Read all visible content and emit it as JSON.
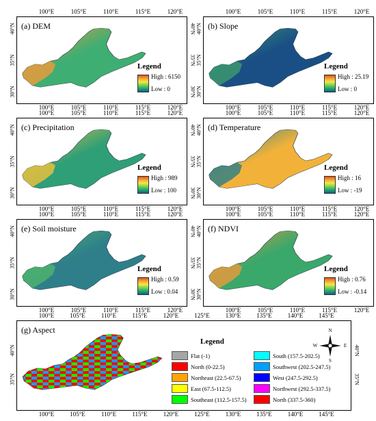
{
  "axis_ticks": {
    "lon_small": [
      "100°E",
      "105°E",
      "110°E",
      "115°E",
      "120°E"
    ],
    "lat_small": [
      "40°N",
      "35°N",
      "30°N"
    ],
    "lon_wide": [
      "100°E",
      "105°E",
      "110°E",
      "115°E",
      "120°E",
      "125°E",
      "130°E",
      "135°E",
      "140°E",
      "145°E"
    ],
    "lat_wide": [
      "40°N",
      "35°N"
    ]
  },
  "panels": [
    {
      "id": "a",
      "title": "(a) DEM",
      "legend_title": "Legend",
      "high": "High : 6150",
      "low": "Low : 0",
      "gradient": [
        "#d9531e",
        "#f6a532",
        "#f2e84b",
        "#7bd24f",
        "#1fa86f",
        "#135e8a"
      ],
      "map_fill": "#3fae72",
      "map_fill2": "#f39a3a"
    },
    {
      "id": "b",
      "title": "(b) Slope",
      "legend_title": "Legend",
      "high": "High : 25.19",
      "low": "Low : 0",
      "gradient": [
        "#d9531e",
        "#f6a532",
        "#f2e84b",
        "#7bd24f",
        "#1fa86f",
        "#135e8a"
      ],
      "map_fill": "#1a4f86",
      "map_fill2": "#3c9b6e"
    },
    {
      "id": "c",
      "title": "(c) Precipitation",
      "legend_title": "Legend",
      "high": "High : 989",
      "low": "Low : 100",
      "gradient": [
        "#d9531e",
        "#f6a532",
        "#f2e84b",
        "#7bd24f",
        "#1fa86f",
        "#135e8a"
      ],
      "map_fill": "#2f9f78",
      "map_fill2": "#f2c23a"
    },
    {
      "id": "d",
      "title": "(d) Temperature",
      "legend_title": "Legend",
      "high": "High : 16",
      "low": "Low : -19",
      "gradient": [
        "#d9531e",
        "#f6a532",
        "#f2e84b",
        "#7bd24f",
        "#1fa86f",
        "#135e8a"
      ],
      "map_fill": "#f2b23a",
      "map_fill2": "#2a7e8a"
    },
    {
      "id": "e",
      "title": "(e) Soil moisture",
      "legend_title": "Legend",
      "high": "High : 0.59",
      "low": "Low : 0.04",
      "gradient": [
        "#d9531e",
        "#f6a532",
        "#f2e84b",
        "#7bd24f",
        "#1fa86f",
        "#135e8a"
      ],
      "map_fill": "#2e7f8a",
      "map_fill2": "#4fb56b"
    },
    {
      "id": "f",
      "title": "(f) NDVI",
      "legend_title": "Legend",
      "high": "High : 0.76",
      "low": "Low : -0.14",
      "gradient": [
        "#d9531e",
        "#f6a532",
        "#f2e84b",
        "#7bd24f",
        "#1fa86f",
        "#135e8a"
      ],
      "map_fill": "#3aa86a",
      "map_fill2": "#ee9a3a"
    }
  ],
  "aspect": {
    "title": "(g) Aspect",
    "legend_title": "Legend",
    "items": [
      {
        "label": "Flat (-1)",
        "color": "#a6a6a6"
      },
      {
        "label": "North (0-22.5)",
        "color": "#ff0000"
      },
      {
        "label": "Northeast (22.5-67.5)",
        "color": "#ffa500"
      },
      {
        "label": "East (67.5-112.5)",
        "color": "#ffff00"
      },
      {
        "label": "Southeast (112.5-157.5)",
        "color": "#00ff00"
      },
      {
        "label": "South (157.5-202.5)",
        "color": "#00ffff"
      },
      {
        "label": "Southwest (202.5-247.5)",
        "color": "#00a0ff"
      },
      {
        "label": "West (247.5-292.5)",
        "color": "#0000ff"
      },
      {
        "label": "Northwest (292.5-337.5)",
        "color": "#ff00ff"
      },
      {
        "label": "North (337.5-360)",
        "color": "#ff0000"
      }
    ]
  },
  "compass": {
    "n": "N",
    "s": "S",
    "e": "E",
    "w": "W"
  }
}
